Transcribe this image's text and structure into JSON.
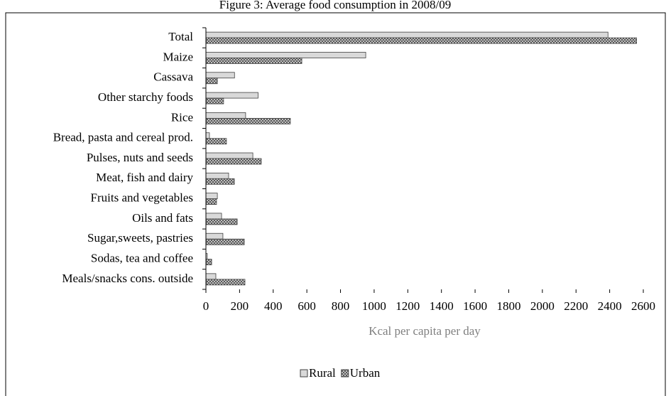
{
  "chart_data": {
    "type": "hbar",
    "title": "Figure 3: Average food consumption in 2008/09",
    "x_label": "Kcal per capita per day",
    "categories": [
      "Total",
      "Maize",
      "Cassava",
      "Other starchy foods",
      "Rice",
      "Bread, pasta and cereal prod.",
      "Pulses, nuts and seeds",
      "Meat, fish and dairy",
      "Fruits and vegetables",
      "Oils and fats",
      "Sugar,sweets, pastries",
      "Sodas, tea and coffee",
      "Meals/snacks cons. outside"
    ],
    "series": [
      {
        "name": "Rural",
        "color": "#d9d9d9",
        "values": [
          2390,
          950,
          170,
          310,
          236,
          21,
          279,
          135,
          68,
          93,
          101,
          8,
          59
        ]
      },
      {
        "name": "Urban",
        "color": "#7f7f7f",
        "values": [
          2560,
          570,
          68,
          105,
          502,
          122,
          329,
          169,
          63,
          186,
          228,
          34,
          232
        ]
      }
    ],
    "xlim": [
      0,
      2600
    ],
    "xticks": [
      0,
      200,
      400,
      600,
      800,
      1000,
      1200,
      1400,
      1600,
      1800,
      2000,
      2200,
      2400,
      2600
    ],
    "legend": "bottom"
  }
}
